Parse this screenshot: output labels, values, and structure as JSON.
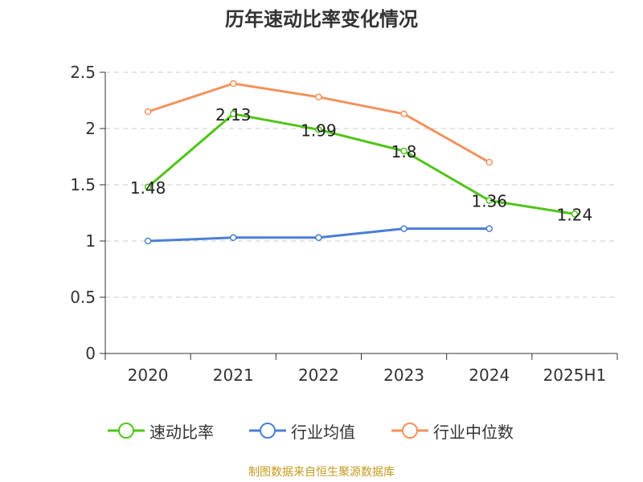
{
  "title": "历年速动比率变化情况",
  "source": "制图数据来自恒生聚源数据库",
  "chart_data": {
    "type": "line",
    "categories": [
      "2020",
      "2021",
      "2022",
      "2023",
      "2024",
      "2025H1"
    ],
    "ylim": [
      0,
      2.5
    ],
    "yticks": [
      "0",
      "0.5",
      "1",
      "1.5",
      "2",
      "2.5"
    ],
    "grid": true,
    "legend_position": "bottom",
    "series": [
      {
        "name": "速动比率",
        "color": "#52c41a",
        "values": [
          1.48,
          2.13,
          1.99,
          1.8,
          1.36,
          1.24
        ],
        "data_labels": [
          "1.48",
          "2.13",
          "1.99",
          "1.8",
          "1.36",
          "1.24"
        ]
      },
      {
        "name": "行业均值",
        "color": "#4a7fd6",
        "values": [
          1.0,
          1.03,
          1.03,
          1.11,
          1.11,
          null
        ]
      },
      {
        "name": "行业中位数",
        "color": "#f4925b",
        "values": [
          2.15,
          2.4,
          2.28,
          2.13,
          1.7,
          null
        ]
      }
    ]
  }
}
